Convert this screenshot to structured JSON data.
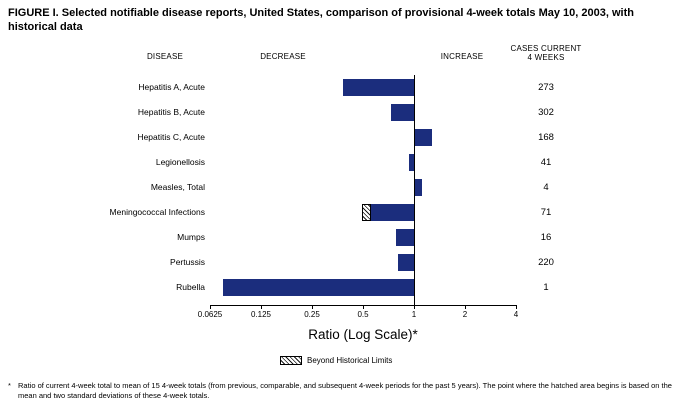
{
  "title": "FIGURE I. Selected notifiable disease reports, United States, comparison of provisional 4-week totals May 10, 2003, with historical data",
  "columns": {
    "disease": "DISEASE",
    "decrease": "DECREASE",
    "increase": "INCREASE",
    "cases_line1": "CASES CURRENT",
    "cases_line2": "4 WEEKS"
  },
  "chart_data": {
    "type": "bar",
    "orientation": "horizontal",
    "scale": "log2",
    "xlabel": "Ratio (Log Scale)*",
    "xlim": [
      0.0625,
      4
    ],
    "baseline_ratio": 1,
    "bar_color": "#1b2d7d",
    "axis_ticks": [
      0.0625,
      0.125,
      0.25,
      0.5,
      1,
      2,
      4
    ],
    "tick_labels": [
      "0.0625",
      "0.125",
      "0.25",
      "0.5",
      "1",
      "2",
      "4"
    ],
    "rows": [
      {
        "disease": "Hepatitis A, Acute",
        "ratio": 0.38,
        "cases": "273",
        "beyond_limit": false
      },
      {
        "disease": "Hepatitis B, Acute",
        "ratio": 0.73,
        "cases": "302",
        "beyond_limit": false
      },
      {
        "disease": "Hepatitis C, Acute",
        "ratio": 1.27,
        "cases": "168",
        "beyond_limit": false
      },
      {
        "disease": "Legionellosis",
        "ratio": 0.93,
        "cases": "41",
        "beyond_limit": false
      },
      {
        "disease": "Measles, Total",
        "ratio": 1.12,
        "cases": "4",
        "beyond_limit": false
      },
      {
        "disease": "Meningococcal Infections",
        "ratio": 0.49,
        "cases": "71",
        "beyond_limit": true,
        "hatch_end": 0.56
      },
      {
        "disease": "Mumps",
        "ratio": 0.78,
        "cases": "16",
        "beyond_limit": false
      },
      {
        "disease": "Pertussis",
        "ratio": 0.8,
        "cases": "220",
        "beyond_limit": false
      },
      {
        "disease": "Rubella",
        "ratio": 0.075,
        "cases": "1",
        "beyond_limit": false
      }
    ],
    "legend": "Beyond Historical Limits"
  },
  "footnote": {
    "marker": "*",
    "text": "Ratio of current 4-week total to mean of 15 4-week totals (from previous, comparable, and subsequent 4-week periods for the past 5 years). The point where the hatched area begins is based on the mean and two standard deviations of these 4-week totals."
  }
}
